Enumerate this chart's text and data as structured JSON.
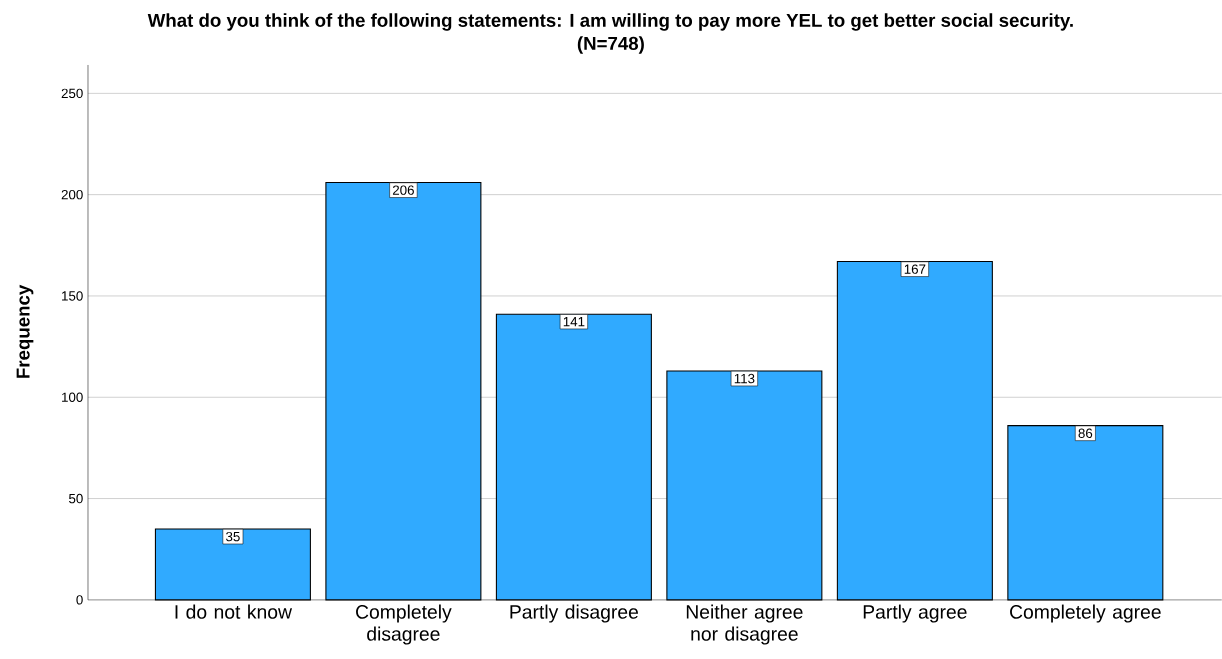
{
  "chart_data": {
    "type": "bar",
    "title": "What do you think of the following statements: I am willing to pay more YEL to get better social security.",
    "subtitle": "(N=748)",
    "ylabel": "Frequency",
    "categories": [
      "I do not know",
      "Completely disagree",
      "Partly disagree",
      "Neither agree nor disagree",
      "Partly agree",
      "Completely agree"
    ],
    "values": [
      35,
      206,
      141,
      113,
      167,
      86
    ],
    "color": "#30aaff",
    "ylim": [
      0,
      264
    ],
    "yticks": [
      0,
      50,
      100,
      150,
      200,
      250
    ],
    "grid": "y",
    "data_labels": true
  }
}
